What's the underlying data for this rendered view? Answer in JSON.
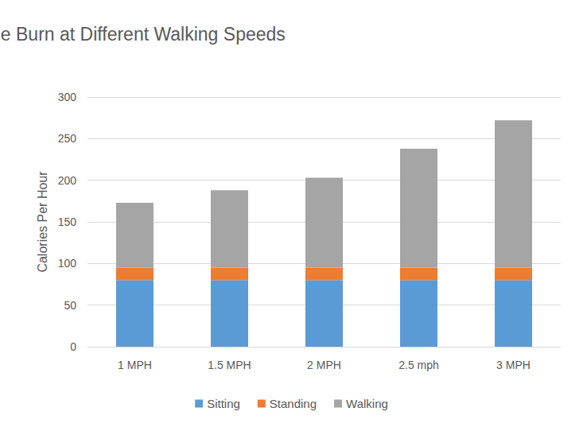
{
  "chart_data": {
    "type": "bar",
    "title": "Incremental Calorie Burn at Different Walking Speeds",
    "y_label": "Calories Per Hour",
    "categories": [
      "1 MPH",
      "1.5 MPH",
      "2 MPH",
      "2.5 mph",
      "3 MPH"
    ],
    "series": [
      {
        "name": "Sitting",
        "color": "#5b9bd5",
        "values": [
          80,
          80,
          80,
          80,
          80
        ]
      },
      {
        "name": "Standing",
        "color": "#ed7d31",
        "values": [
          15,
          15,
          15,
          15,
          15
        ]
      },
      {
        "name": "Walking",
        "color": "#a5a5a5",
        "values": [
          78,
          93,
          108,
          143,
          177
        ]
      }
    ],
    "stacked": true,
    "ylim": [
      0,
      300
    ],
    "yticks": [
      0,
      50,
      100,
      150,
      200,
      250,
      300
    ],
    "grid": true,
    "legend": "bottom"
  }
}
